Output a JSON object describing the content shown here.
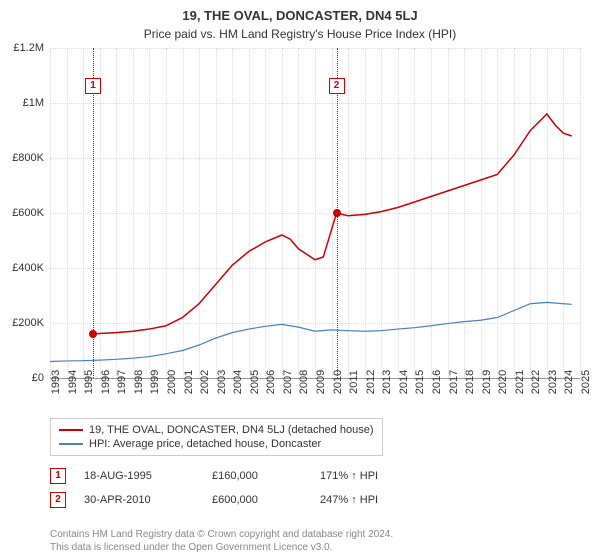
{
  "title": "19, THE OVAL, DONCASTER, DN4 5LJ",
  "subtitle": "Price paid vs. HM Land Registry's House Price Index (HPI)",
  "chart": {
    "type": "line",
    "background_color": "#ffffff",
    "grid_color": "#dddddd",
    "axis_color": "#999999",
    "x_years": [
      1993,
      1994,
      1995,
      1996,
      1997,
      1998,
      1999,
      2000,
      2001,
      2002,
      2003,
      2004,
      2005,
      2006,
      2007,
      2008,
      2009,
      2010,
      2011,
      2012,
      2013,
      2014,
      2015,
      2016,
      2017,
      2018,
      2019,
      2020,
      2021,
      2022,
      2023,
      2024,
      2025
    ],
    "y_ticks": [
      0,
      200000,
      400000,
      600000,
      800000,
      1000000,
      1200000
    ],
    "y_tick_labels": [
      "£0",
      "£200K",
      "£400K",
      "£600K",
      "£800K",
      "£1M",
      "£1.2M"
    ],
    "ylim": [
      0,
      1200000
    ],
    "xlim": [
      1993,
      2025
    ],
    "label_fontsize": 11,
    "series": [
      {
        "name": "property",
        "label": "19, THE OVAL, DONCASTER, DN4 5LJ (detached house)",
        "color": "#cc0000",
        "line_width": 1.5,
        "points": [
          [
            1995.6,
            160000
          ],
          [
            1996,
            162000
          ],
          [
            1997,
            165000
          ],
          [
            1998,
            170000
          ],
          [
            1999,
            178000
          ],
          [
            2000,
            190000
          ],
          [
            2001,
            220000
          ],
          [
            2002,
            270000
          ],
          [
            2003,
            340000
          ],
          [
            2004,
            410000
          ],
          [
            2005,
            460000
          ],
          [
            2006,
            495000
          ],
          [
            2007,
            520000
          ],
          [
            2007.5,
            505000
          ],
          [
            2008,
            470000
          ],
          [
            2009,
            430000
          ],
          [
            2009.5,
            440000
          ],
          [
            2010.3,
            600000
          ],
          [
            2011,
            590000
          ],
          [
            2012,
            595000
          ],
          [
            2013,
            605000
          ],
          [
            2014,
            620000
          ],
          [
            2015,
            640000
          ],
          [
            2016,
            660000
          ],
          [
            2017,
            680000
          ],
          [
            2018,
            700000
          ],
          [
            2019,
            720000
          ],
          [
            2020,
            740000
          ],
          [
            2021,
            810000
          ],
          [
            2022,
            900000
          ],
          [
            2023,
            960000
          ],
          [
            2023.5,
            920000
          ],
          [
            2024,
            890000
          ],
          [
            2024.5,
            880000
          ]
        ]
      },
      {
        "name": "hpi",
        "label": "HPI: Average price, detached house, Doncaster",
        "color": "#4a7fc4",
        "line_width": 1.2,
        "points": [
          [
            1993,
            60000
          ],
          [
            1994,
            62000
          ],
          [
            1995,
            63000
          ],
          [
            1996,
            65000
          ],
          [
            1997,
            68000
          ],
          [
            1998,
            72000
          ],
          [
            1999,
            78000
          ],
          [
            2000,
            88000
          ],
          [
            2001,
            100000
          ],
          [
            2002,
            120000
          ],
          [
            2003,
            145000
          ],
          [
            2004,
            165000
          ],
          [
            2005,
            178000
          ],
          [
            2006,
            188000
          ],
          [
            2007,
            195000
          ],
          [
            2008,
            185000
          ],
          [
            2009,
            170000
          ],
          [
            2010,
            175000
          ],
          [
            2011,
            172000
          ],
          [
            2012,
            170000
          ],
          [
            2013,
            172000
          ],
          [
            2014,
            178000
          ],
          [
            2015,
            183000
          ],
          [
            2016,
            190000
          ],
          [
            2017,
            198000
          ],
          [
            2018,
            205000
          ],
          [
            2019,
            210000
          ],
          [
            2020,
            220000
          ],
          [
            2021,
            245000
          ],
          [
            2022,
            270000
          ],
          [
            2023,
            275000
          ],
          [
            2024,
            270000
          ],
          [
            2024.5,
            268000
          ]
        ]
      }
    ],
    "markers": [
      {
        "num": "1",
        "x": 1995.6,
        "y": 160000,
        "color": "#cc0000"
      },
      {
        "num": "2",
        "x": 2010.3,
        "y": 600000,
        "color": "#cc0000"
      }
    ]
  },
  "legend": {
    "series": [
      {
        "color": "#cc0000",
        "label": "19, THE OVAL, DONCASTER, DN4 5LJ (detached house)"
      },
      {
        "color": "#4a7fc4",
        "label": "HPI: Average price, detached house, Doncaster"
      }
    ]
  },
  "sales": [
    {
      "num": "1",
      "color": "#cc0000",
      "date": "18-AUG-1995",
      "price": "£160,000",
      "hpi": "171% ↑ HPI"
    },
    {
      "num": "2",
      "color": "#cc0000",
      "date": "30-APR-2010",
      "price": "£600,000",
      "hpi": "247% ↑ HPI"
    }
  ],
  "footer": {
    "line1": "Contains HM Land Registry data © Crown copyright and database right 2024.",
    "line2": "This data is licensed under the Open Government Licence v3.0."
  }
}
